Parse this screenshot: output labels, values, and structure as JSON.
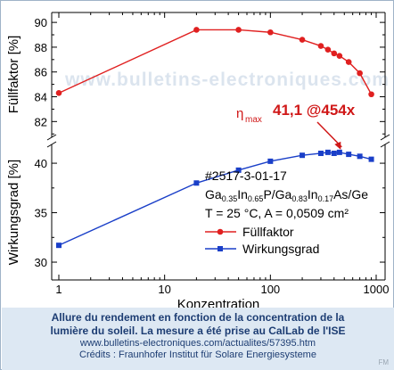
{
  "chart_data": {
    "type": "line",
    "x_label": "Konzentration",
    "x_scale": "log",
    "x_ticks": [
      "1",
      "10",
      "100",
      "1000"
    ],
    "top_panel": {
      "y_label": "Füllfaktor [%]",
      "y_ticks": [
        "82",
        "84",
        "86",
        "88",
        "90"
      ],
      "ylim": [
        80.8,
        90.8
      ],
      "series": [
        {
          "name": "Füllfaktor",
          "color": "#e02020",
          "marker": "circle",
          "x": [
            1,
            20,
            50,
            100,
            200,
            300,
            350,
            400,
            450,
            550,
            700,
            900
          ],
          "y": [
            84.3,
            89.4,
            89.4,
            89.2,
            88.6,
            88.1,
            87.8,
            87.5,
            87.3,
            86.8,
            85.9,
            84.2
          ]
        }
      ]
    },
    "bottom_panel": {
      "y_label": "Wirkungsgrad [%]",
      "y_ticks": [
        "30",
        "35",
        "40"
      ],
      "ylim": [
        28.2,
        41.9
      ],
      "series": [
        {
          "name": "Wirkungsgrad",
          "color": "#1a3fc8",
          "marker": "square",
          "x": [
            1,
            20,
            50,
            100,
            200,
            300,
            350,
            400,
            450,
            550,
            700,
            900
          ],
          "y": [
            31.7,
            38.0,
            39.3,
            40.2,
            40.8,
            41.0,
            41.1,
            41.0,
            41.1,
            40.9,
            40.7,
            40.4
          ]
        }
      ]
    },
    "annotation": {
      "eta": "η",
      "eta_sub": "max",
      "value": "41,1 @454x",
      "target_x": 454,
      "target_y": 41.1
    },
    "legend_text": {
      "id": "#2517-3-01-17",
      "compound": [
        [
          "Ga",
          ""
        ],
        [
          "",
          "0.35"
        ],
        [
          "In",
          ""
        ],
        [
          "",
          "0.65"
        ],
        [
          "P/Ga",
          ""
        ],
        [
          "",
          "0.83"
        ],
        [
          "In",
          ""
        ],
        [
          "",
          "0.17"
        ],
        [
          "As/Ge",
          ""
        ]
      ],
      "conditions": "T = 25 °C, A = 0,0509 cm²",
      "entries": [
        "Füllfaktor",
        "Wirkungsgrad"
      ]
    },
    "watermark": "www.bulletins-electroniques.com"
  },
  "caption": {
    "line1": "Allure du rendement en fonction de la concentration de la",
    "line2": "lumière du soleil. La mesure a été prise au CalLab de l'ISE",
    "line3": "www.bulletins-electroniques.com/actualites/57395.htm",
    "line4": "Crédits : Fraunhofer Institut für Solare Energiesysteme",
    "corner": "FM"
  },
  "colors": {
    "red": "#e02020",
    "blue": "#1a3fc8",
    "caption_bg": "#dde8f3",
    "caption_text": "#1d3d73"
  }
}
